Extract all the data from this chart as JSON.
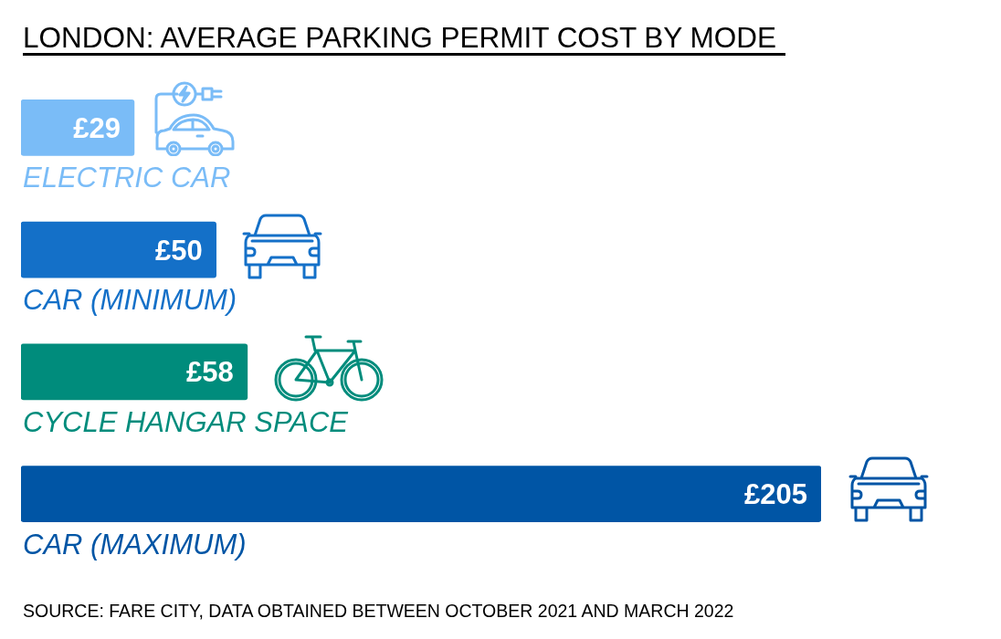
{
  "chart_data": {
    "type": "bar",
    "orientation": "horizontal",
    "title": "LONDON: AVERAGE PARKING PERMIT COST BY MODE",
    "categories": [
      "ELECTRIC CAR",
      "CAR (MINIMUM)",
      "CYCLE HANGAR SPACE",
      "CAR (MAXIMUM)"
    ],
    "values": [
      29,
      50,
      58,
      205
    ],
    "colors": [
      "#7abcf7",
      "#1470c8",
      "#008c7c",
      "#0055a5"
    ],
    "value_labels": [
      "£29",
      "£50",
      "£58",
      "£205"
    ],
    "annotations": [
      "SOURCE: FARE CITY, DATA OBTAINED BETWEEN OCTOBER 2021 AND MARCH 2022"
    ]
  }
}
